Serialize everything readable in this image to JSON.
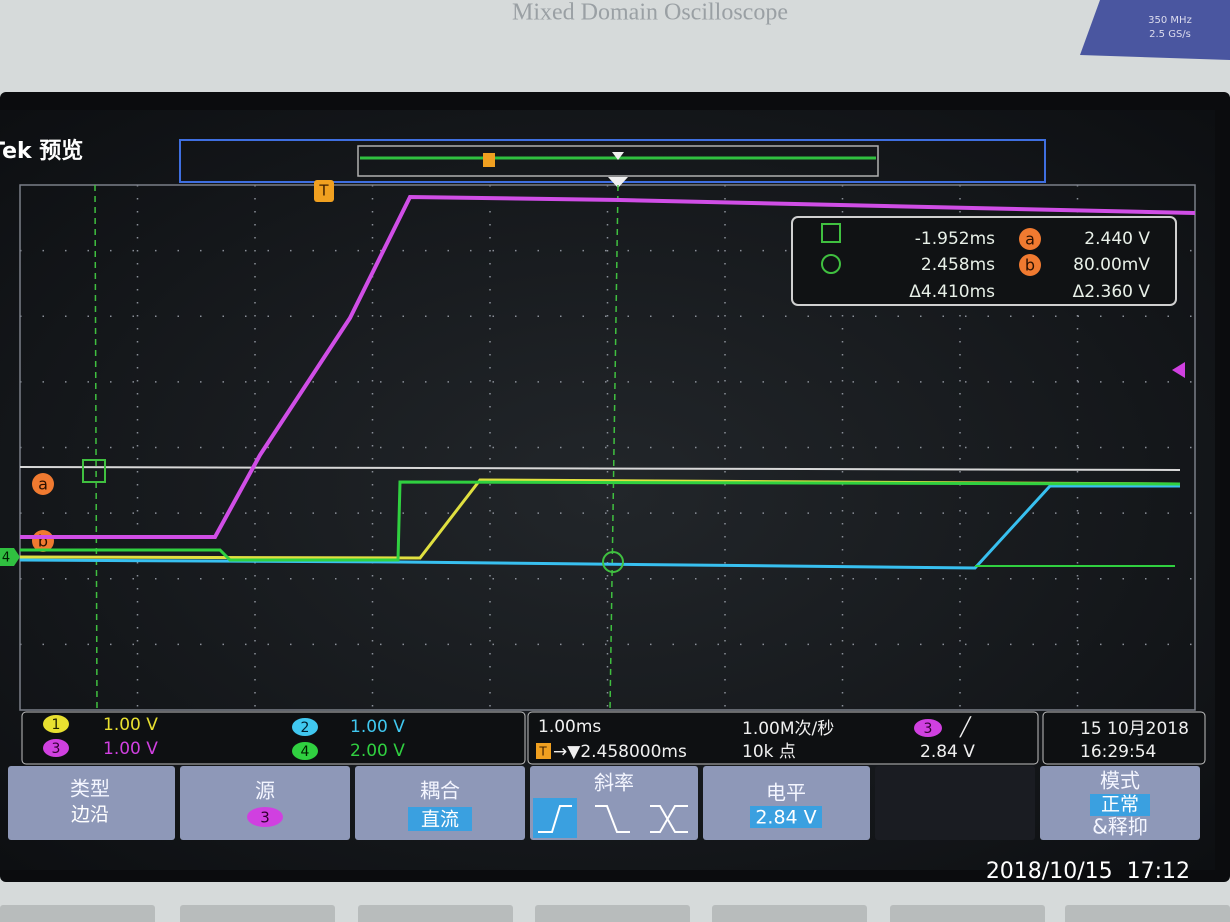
{
  "bezel": {
    "model": "Mixed Domain Oscilloscope",
    "bandwidth": "350 MHz",
    "sample_rate": "2.5 GS/s"
  },
  "screen": {
    "title": "Tek 预览",
    "trigger_marker": "T",
    "cursor_labels": [
      "a",
      "b"
    ],
    "ground_marker": "4"
  },
  "cursor_readout": {
    "rows": [
      {
        "time": "-1.952ms",
        "label": "a",
        "value": "2.440 V"
      },
      {
        "time": "2.458ms",
        "label": "b",
        "value": "80.00mV"
      },
      {
        "time": "Δ4.410ms",
        "value": "Δ2.360 V"
      }
    ]
  },
  "channels": [
    {
      "id": "1",
      "scale": "1.00 V"
    },
    {
      "id": "2",
      "scale": "1.00 V"
    },
    {
      "id": "3",
      "scale": "1.00 V"
    },
    {
      "id": "4",
      "scale": "2.00 V"
    }
  ],
  "timebase": {
    "scale": "1.00ms",
    "sample_rate": "1.00M次/秒",
    "trigger_position": "→▼2.458000ms",
    "record_length": "10k 点"
  },
  "trigger": {
    "source": "3",
    "slope": "╱",
    "level": "2.84 V"
  },
  "clock": {
    "date": "15 10月2018",
    "time": "16:29:54"
  },
  "menu": [
    {
      "label": "类型",
      "value": "边沿"
    },
    {
      "label": "源",
      "value": "3"
    },
    {
      "label": "耦合",
      "value": "直流"
    },
    {
      "label": "斜率"
    },
    {
      "label": "电平",
      "value": "2.84 V"
    },
    {
      "label": "模式",
      "value": "正常",
      "extra": "&释抑"
    }
  ],
  "photo_timestamp": "2018/10/15  17:12"
}
